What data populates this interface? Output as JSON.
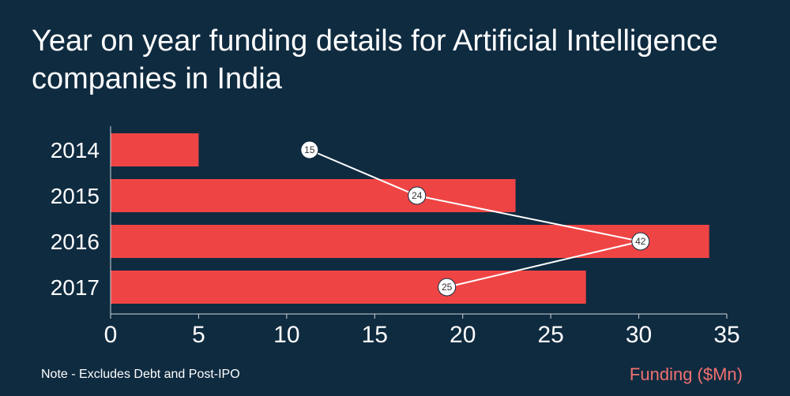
{
  "title": "Year on year funding details for Artificial Intelligence companies in India",
  "note": "Note - Excludes Debt and Post-IPO",
  "colors": {
    "background": "#0f2b40",
    "bar": "#ef4444",
    "line": "#ffffff",
    "xlabel": "#f07070"
  },
  "chart_data": {
    "type": "bar",
    "orientation": "horizontal",
    "categories": [
      "2014",
      "2015",
      "2016",
      "2017"
    ],
    "series": [
      {
        "values": [
          5,
          23,
          34,
          27
        ]
      }
    ],
    "overlay_line": {
      "values": [
        11.3,
        17.4,
        30.1,
        19.1
      ],
      "labels": [
        "15",
        "24",
        "42",
        "25"
      ]
    },
    "xlabel": "Funding ($Mn)",
    "xlim": [
      0,
      35
    ],
    "xticks": [
      0,
      5,
      10,
      15,
      20,
      25,
      30,
      35
    ],
    "grid": false
  }
}
